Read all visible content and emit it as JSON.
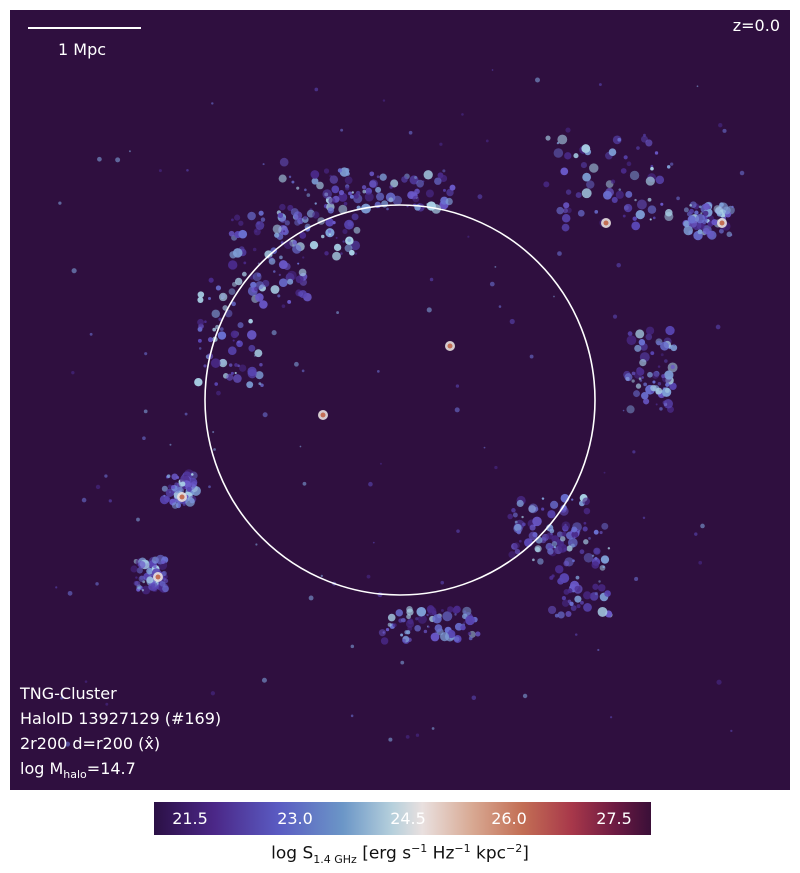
{
  "map": {
    "redshift": "z=0.0",
    "scalebar_label": "1 Mpc",
    "info": {
      "simulation": "TNG-Cluster",
      "halo_id": "HaloID 13927129 (#169)",
      "projection": "2r200 d=r200 (x̂)",
      "mass_prefix": "log M",
      "mass_sub": "halo",
      "mass_value": "=14.7"
    },
    "circle_color": "#ffffff",
    "background_color": "#2f0f3f"
  },
  "colorbar": {
    "ticks": [
      "21.5",
      "23.0",
      "24.5",
      "26.0",
      "27.5"
    ],
    "label_prefix": "log S",
    "label_sub": "1.4 GHz",
    "label_units_a": " [erg s",
    "exp1": "−1",
    "label_units_b": " Hz",
    "exp2": "−1",
    "label_units_c": " kpc",
    "exp3": "−2",
    "label_units_d": "]"
  }
}
